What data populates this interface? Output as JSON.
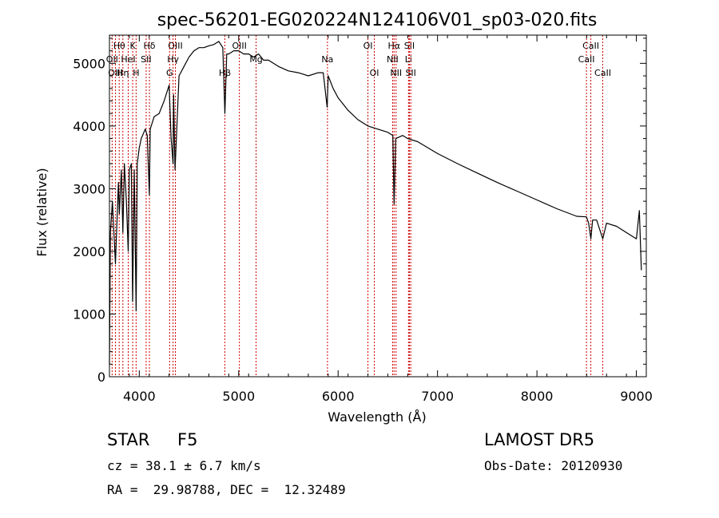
{
  "chart_data": {
    "type": "line",
    "title": "spec-56201-EG020224N124106V01_sp03-020.fits",
    "xlabel": "Wavelength (Å)",
    "ylabel": "Flux (relative)",
    "xlim": [
      3700,
      9100
    ],
    "ylim": [
      0,
      5450
    ],
    "xticks": [
      4000,
      5000,
      6000,
      7000,
      8000,
      9000
    ],
    "yticks": [
      0,
      1000,
      2000,
      3000,
      4000,
      5000
    ],
    "grid": false,
    "line_color": "#000000",
    "marker_color": "#cc0000",
    "series": [
      {
        "x": [
          3700,
          3710,
          3730,
          3760,
          3790,
          3800,
          3820,
          3835,
          3850,
          3870,
          3889,
          3900,
          3920,
          3933,
          3950,
          3968,
          3980,
          4000,
          4020,
          4060,
          4080,
          4102,
          4110,
          4150,
          4200,
          4250,
          4300,
          4320,
          4340,
          4345,
          4360,
          4400,
          4450,
          4500,
          4550,
          4600,
          4650,
          4700,
          4750,
          4800,
          4840,
          4861,
          4880,
          4900,
          4950,
          5000,
          5050,
          5100,
          5150,
          5200,
          5250,
          5300,
          5400,
          5500,
          5600,
          5700,
          5800,
          5850,
          5890,
          5900,
          5950,
          6000,
          6100,
          6200,
          6300,
          6400,
          6500,
          6550,
          6563,
          6580,
          6650,
          6700,
          6800,
          7000,
          7200,
          7400,
          7600,
          7800,
          8000,
          8200,
          8400,
          8498,
          8520,
          8542,
          8560,
          8600,
          8662,
          8700,
          8800,
          8900,
          9000,
          9030,
          9050
        ],
        "y": [
          200,
          2300,
          2800,
          1800,
          3100,
          2600,
          3300,
          2300,
          3400,
          2800,
          2000,
          3300,
          3400,
          1200,
          3300,
          1050,
          3400,
          3650,
          3800,
          3950,
          3850,
          2900,
          3950,
          4150,
          4200,
          4400,
          4650,
          3800,
          3400,
          4500,
          3300,
          4800,
          4950,
          5100,
          5200,
          5250,
          5250,
          5280,
          5300,
          5350,
          5250,
          4200,
          5150,
          5150,
          5200,
          5200,
          5150,
          5150,
          5100,
          5150,
          5050,
          5050,
          4950,
          4880,
          4850,
          4800,
          4850,
          4850,
          4300,
          4800,
          4600,
          4450,
          4250,
          4100,
          4000,
          3950,
          3900,
          3850,
          2750,
          3800,
          3850,
          3800,
          3750,
          3560,
          3400,
          3250,
          3100,
          2960,
          2820,
          2680,
          2560,
          2550,
          2450,
          2200,
          2500,
          2500,
          2200,
          2450,
          2400,
          2300,
          2200,
          2650,
          1700
        ]
      }
    ],
    "lines": [
      {
        "label": "Hθ",
        "x": 3798,
        "row": 1
      },
      {
        "label": "K",
        "x": 3934,
        "row": 1
      },
      {
        "label": "Hδ",
        "x": 4102,
        "row": 1
      },
      {
        "label": "OIII",
        "x": 4363,
        "row": 1
      },
      {
        "label": "OIII",
        "x": 5007,
        "row": 1
      },
      {
        "label": "OI",
        "x": 6300,
        "row": 1
      },
      {
        "label": "Hα",
        "x": 6563,
        "row": 1
      },
      {
        "label": "SII",
        "x": 6717,
        "row": 1
      },
      {
        "label": "CaII",
        "x": 8542,
        "row": 1
      },
      {
        "label": "OII",
        "x": 3727,
        "row": 2
      },
      {
        "label": "HeI",
        "x": 3889,
        "row": 2
      },
      {
        "label": "SII",
        "x": 4069,
        "row": 2
      },
      {
        "label": "Hγ",
        "x": 4340,
        "row": 2
      },
      {
        "label": "Mg",
        "x": 5175,
        "row": 2
      },
      {
        "label": "Na",
        "x": 5893,
        "row": 2
      },
      {
        "label": "NII",
        "x": 6548,
        "row": 2
      },
      {
        "label": "Li",
        "x": 6708,
        "row": 2
      },
      {
        "label": "CaII",
        "x": 8498,
        "row": 2
      },
      {
        "label": "OIII",
        "x": 3760,
        "row": 3
      },
      {
        "label": "Hη",
        "x": 3835,
        "row": 3
      },
      {
        "label": "H",
        "x": 3968,
        "row": 3
      },
      {
        "label": "G",
        "x": 4305,
        "row": 3
      },
      {
        "label": "Hβ",
        "x": 4861,
        "row": 3
      },
      {
        "label": "OI",
        "x": 6364,
        "row": 3
      },
      {
        "label": "NII",
        "x": 6583,
        "row": 3
      },
      {
        "label": "SII",
        "x": 6731,
        "row": 3
      },
      {
        "label": "CaII",
        "x": 8662,
        "row": 3
      }
    ]
  },
  "footer": {
    "class": "STAR",
    "subclass": "F5",
    "survey": "LAMOST DR5",
    "cz": "cz = 38.1 ± 6.7 km/s",
    "obs_date": "Obs-Date: 20120930",
    "coords": "RA =  29.98788, DEC =  12.32489"
  }
}
